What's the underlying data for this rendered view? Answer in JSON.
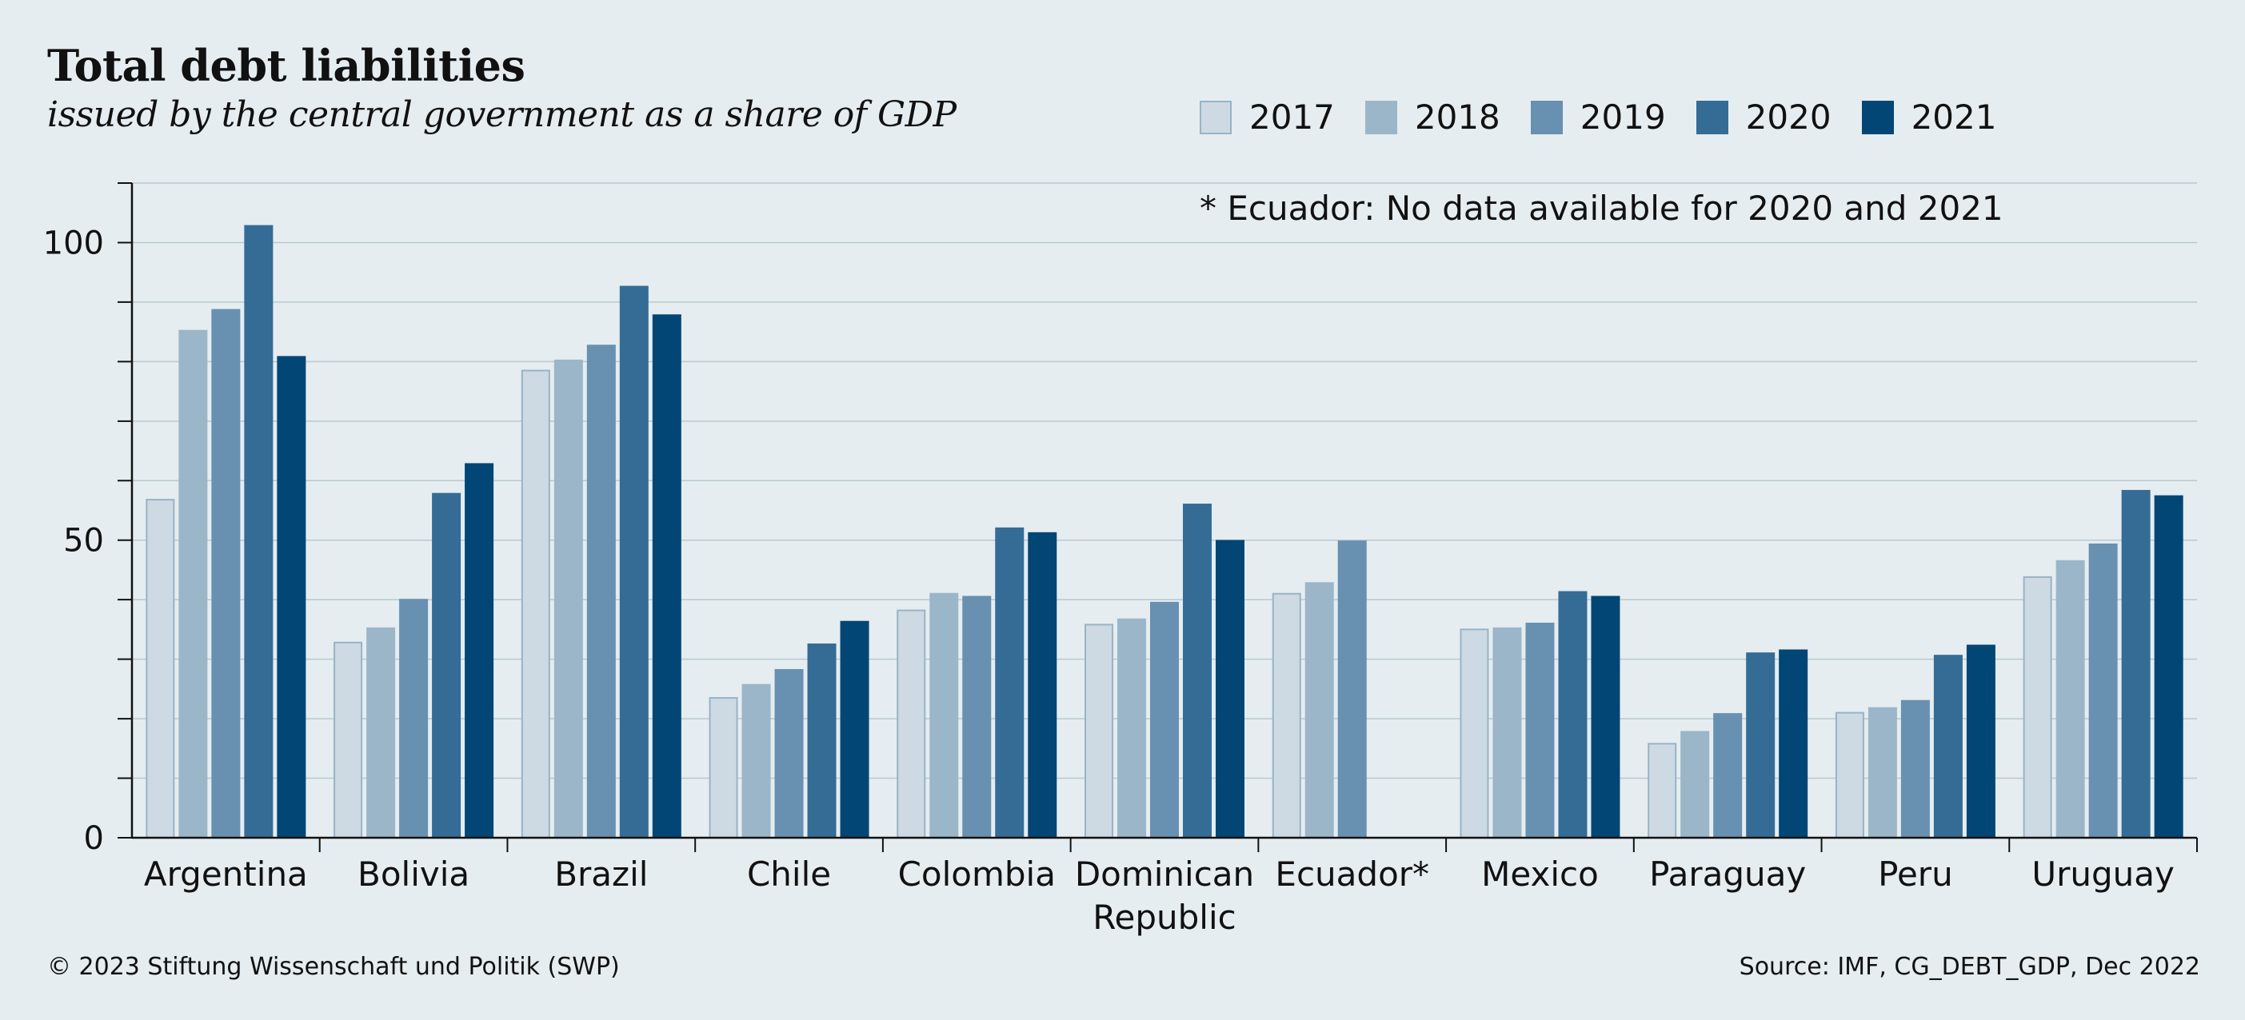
{
  "chart_data": {
    "type": "bar",
    "title": "Total debt liabilities",
    "subtitle": "issued by the central government as a share of GDP",
    "categories": [
      "Argentina",
      "Bolivia",
      "Brazil",
      "Chile",
      "Colombia",
      "Dominican Republic",
      "Ecuador*",
      "Mexico",
      "Paraguay",
      "Peru",
      "Uruguay"
    ],
    "category_lines": [
      [
        "Argentina"
      ],
      [
        "Bolivia"
      ],
      [
        "Brazil"
      ],
      [
        "Chile"
      ],
      [
        "Colombia"
      ],
      [
        "Dominican",
        "Republic"
      ],
      [
        "Ecuador*"
      ],
      [
        "Mexico"
      ],
      [
        "Paraguay"
      ],
      [
        "Peru"
      ],
      [
        "Uruguay"
      ]
    ],
    "series": [
      {
        "name": "2017",
        "color": "#cddae3",
        "stroke": "#98b3c7",
        "values": [
          56.8,
          32.8,
          78.5,
          23.5,
          38.2,
          35.8,
          41.0,
          35.0,
          15.8,
          21.0,
          43.8
        ]
      },
      {
        "name": "2018",
        "color": "#9cb6c9",
        "stroke": "#9cb6c9",
        "values": [
          85.2,
          35.2,
          80.2,
          25.7,
          41.0,
          36.7,
          42.8,
          35.2,
          17.8,
          21.8,
          46.5
        ]
      },
      {
        "name": "2019",
        "color": "#6890b1",
        "stroke": "#6890b1",
        "values": [
          88.7,
          40.0,
          82.7,
          28.2,
          40.5,
          39.5,
          49.8,
          36.0,
          20.8,
          23.0,
          49.3
        ]
      },
      {
        "name": "2020",
        "color": "#356c96",
        "stroke": "#356c96",
        "values": [
          102.8,
          57.8,
          92.6,
          32.5,
          52.0,
          56.0,
          null,
          41.3,
          31.0,
          30.6,
          58.3
        ]
      },
      {
        "name": "2021",
        "color": "#024675",
        "stroke": "#024675",
        "values": [
          80.8,
          62.8,
          87.8,
          36.3,
          51.2,
          49.9,
          null,
          40.5,
          31.5,
          32.3,
          57.4
        ]
      }
    ],
    "ylim": [
      0,
      110
    ],
    "yticks": [
      0,
      50,
      100
    ],
    "grid_step": 10,
    "grid": true,
    "legend": "top-right",
    "annotation": "* Ecuador: No data available for 2020 and 2021"
  },
  "footer": {
    "copyright": "© 2023 Stiftung Wissenschaft und Politik (SWP)",
    "source": "Source: IMF, CG_DEBT_GDP, Dec 2022"
  }
}
